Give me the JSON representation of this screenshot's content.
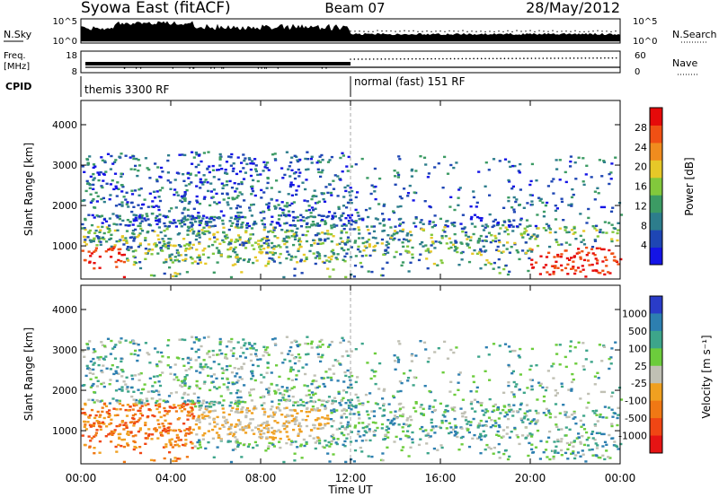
{
  "header": {
    "station": "Syowa East (fitACF)",
    "beam": "Beam 07",
    "date": "28/May/2012"
  },
  "nsky_panel": {
    "left_label": "N.Sky",
    "right_label": "N.Search",
    "left_ticks": [
      "10^5",
      "10^0"
    ],
    "right_ticks": [
      "10^5",
      "10^0"
    ]
  },
  "freq_panel": {
    "left_label_1": "Freq.",
    "left_label_2": "[MHz]",
    "right_label": "Nave",
    "left_ticks": [
      "18",
      "8"
    ],
    "right_ticks": [
      "60",
      "0"
    ]
  },
  "cpid": {
    "label": "CPID",
    "segments": [
      {
        "label": "themis 3300 RF",
        "start_hour": 0
      },
      {
        "label": "normal (fast) 151 RF",
        "start_hour": 12
      }
    ]
  },
  "colors": {
    "power": [
      "#1414e6",
      "#1e46b4",
      "#2d7d8c",
      "#3c9b64",
      "#82c83c",
      "#e6c828",
      "#f08c1e",
      "#f05014",
      "#e60a0a"
    ],
    "velocity": [
      "#2a3cc8",
      "#2d7fb0",
      "#3da58a",
      "#6ccc3c",
      "#c0c0b4",
      "#f0a020",
      "#f07814",
      "#f04614",
      "#e61414"
    ]
  },
  "chart_data": [
    {
      "type": "heatmap",
      "name": "power",
      "ylabel": "Slant Range [km]",
      "ytick_labels": [
        "1000",
        "2000",
        "3000",
        "4000"
      ],
      "yticks": [
        1000,
        2000,
        3000,
        4000
      ],
      "ylim": [
        180,
        4600
      ],
      "xlim": [
        0,
        24
      ],
      "colorbar_label": "Power [dB]",
      "colorbar_ticks": [
        "4",
        "8",
        "12",
        "16",
        "20",
        "24",
        "28"
      ],
      "colorbar_range": [
        0,
        32
      ]
    },
    {
      "type": "heatmap",
      "name": "velocity",
      "ylabel": "Slant Range [km]",
      "ytick_labels": [
        "1000",
        "2000",
        "3000",
        "4000"
      ],
      "yticks": [
        1000,
        2000,
        3000,
        4000
      ],
      "ylim": [
        180,
        4600
      ],
      "xlim": [
        0,
        24
      ],
      "colorbar_label": "Velocity [m s⁻¹]",
      "colorbar_ticks": [
        "1000",
        "500",
        "100",
        "25",
        "-25",
        "-100",
        "-500",
        "-1000"
      ]
    }
  ],
  "xaxis": {
    "label": "Time UT",
    "tick_labels": [
      "00:00",
      "04:00",
      "08:00",
      "12:00",
      "16:00",
      "20:00",
      "00:00"
    ],
    "ticks": [
      0,
      4,
      8,
      12,
      16,
      20,
      24
    ]
  }
}
